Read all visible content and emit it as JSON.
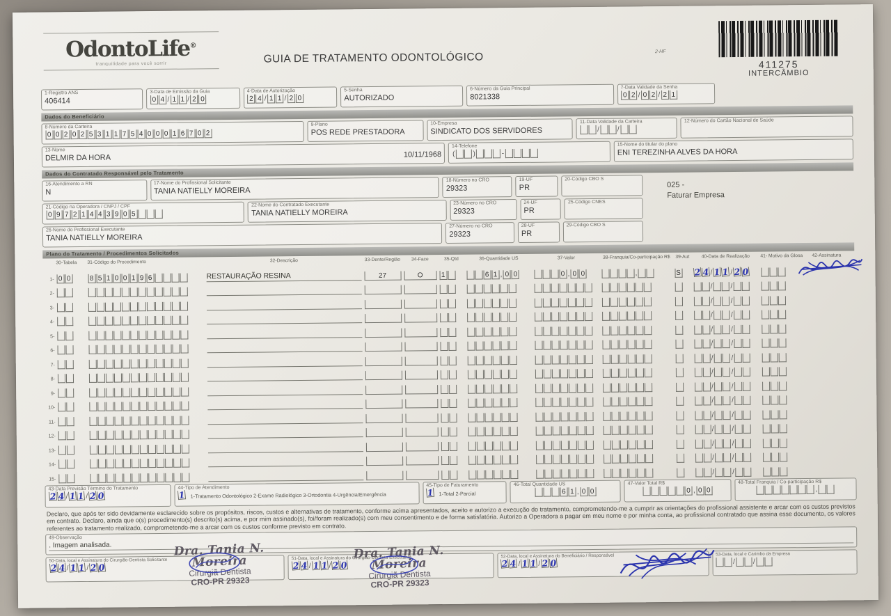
{
  "header": {
    "logo": "OdontoLife",
    "logo_mark": "®",
    "tagline": "tranquilidade para você sorrir",
    "title": "GUIA DE TRATAMENTO ODONTOLÓGICO",
    "code": "2-HF",
    "barcode": {
      "number": "411275",
      "label": "INTERCÂMBIO"
    }
  },
  "sections": {
    "beneficiary": "Dados do Beneficiário",
    "contractor": "Dados do Contratado Responsável pelo Tratamento",
    "plan": "Plano do Tratamento / Procedimentos Solicitados"
  },
  "note": {
    "line1": "025 -",
    "line2": "Faturar Empresa"
  },
  "fields": {
    "f1": {
      "label": "1-Registro ANS",
      "value": "406414"
    },
    "f3": {
      "label": "3-Data de Emissão da Guia",
      "comb": [
        "0",
        "4",
        "/",
        "1",
        "1",
        "/",
        "2",
        "0"
      ]
    },
    "f4": {
      "label": "4-Data de Autorização",
      "comb": [
        "2",
        "4",
        "/",
        "1",
        "1",
        "/",
        "2",
        "0"
      ]
    },
    "f5": {
      "label": "5-Senha",
      "value": "AUTORIZADO"
    },
    "f6": {
      "label": "6-Número da Guia Principal",
      "value": "8021338"
    },
    "f7": {
      "label": "7-Data Validade da Senha",
      "comb": [
        "0",
        "2",
        "/",
        "0",
        "2",
        "/",
        "2",
        "1"
      ]
    },
    "f8": {
      "label": "8-Número da Carteira",
      "comb": [
        "0",
        "0",
        "2",
        "0",
        "2",
        "5",
        "3",
        "1",
        "1",
        "7",
        "5",
        "4",
        "0",
        "0",
        "0",
        "1",
        "6",
        "7",
        "0",
        "2"
      ]
    },
    "f9": {
      "label": "9-Plano",
      "value": "POS REDE PRESTADORA"
    },
    "f10": {
      "label": "10-Empresa",
      "value": "SINDICATO DOS SERVIDORES"
    },
    "f11": {
      "label": "11-Data Validade da Carteira",
      "comb": [
        "",
        "",
        "/",
        "",
        "",
        "/",
        "",
        ""
      ]
    },
    "f12": {
      "label": "12-Número do Cartão Nacional de Saúde",
      "value": ""
    },
    "f13": {
      "label": "13-Nome",
      "value": "DELMIR DA HORA",
      "birthdate": "10/11/1968"
    },
    "f14": {
      "label": "14-Telefone",
      "comb": [
        "(",
        "",
        "",
        ")",
        "",
        "",
        "",
        "-",
        "",
        "",
        "",
        ""
      ]
    },
    "f15": {
      "label": "15-Nome do titular do plano",
      "value": "ENI TEREZINHA ALVES DA HORA"
    },
    "f16": {
      "label": "16-Atendimento a RN",
      "value": "N"
    },
    "f17": {
      "label": "17-Nome do Profissional Solicitante",
      "value": "TANIA NATIELLY MOREIRA"
    },
    "f18": {
      "label": "18-Número no CRO",
      "value": "29323"
    },
    "f19": {
      "label": "19-UF",
      "value": "PR"
    },
    "f20": {
      "label": "20-Código CBO S",
      "value": ""
    },
    "f21": {
      "label": "21-Código na Operadora / CNPJ / CPF",
      "comb": [
        "0",
        "9",
        "7",
        "2",
        "1",
        "4",
        "4",
        "3",
        "9",
        "0",
        "5",
        "",
        "",
        ""
      ]
    },
    "f22": {
      "label": "22-Nome do Contratado Executante",
      "value": "TANIA NATIELLY MOREIRA"
    },
    "f23": {
      "label": "23-Número no CRO",
      "value": "29323"
    },
    "f24": {
      "label": "24-UF",
      "value": "PR"
    },
    "f25": {
      "label": "25-Código CNES",
      "value": ""
    },
    "f26": {
      "label": "26-Nome do Profissional Executante",
      "value": "TANIA NATIELLY MOREIRA"
    },
    "f27": {
      "label": "27-Número no CRO",
      "value": "29323"
    },
    "f28": {
      "label": "28-UF",
      "value": "PR"
    },
    "f29": {
      "label": "29-Código CBO S",
      "value": ""
    },
    "f43": {
      "label": "43-Data Previsão Término do Tratamento",
      "comb": [
        "2",
        "4",
        "/",
        "1",
        "1",
        "/",
        "2",
        "0"
      ]
    },
    "f44": {
      "label": "44-Tipo de Atendimento",
      "comb": [
        "1"
      ],
      "options": "1-Tratamento Odontológico  2-Exame Radiológico  3-Ortodontia  4-Urgência/Emergência"
    },
    "f45": {
      "label": "45-Tipo de Faturamento",
      "comb": [
        "1"
      ],
      "options": "1-Total  2-Parcial"
    },
    "f46": {
      "label": "46-Total Quantidade US",
      "comb": [
        "",
        "",
        "",
        "6",
        "1",
        ",",
        "0",
        "0"
      ]
    },
    "f47": {
      "label": "47-Valor Total R$",
      "comb": [
        "",
        "",
        "",
        "",
        "",
        "0",
        ",",
        "0",
        "0"
      ]
    },
    "f48": {
      "label": "48-Total Franquia / Co-participação R$",
      "comb": [
        "",
        "",
        "",
        "",
        "",
        "",
        "",
        ",",
        "",
        ""
      ]
    },
    "f49": {
      "label": "49-Observação",
      "value": ". Imagem analisada."
    },
    "f50": {
      "label": "50-Data, local e Assinatura do Cirurgião-Dentista Solicitante",
      "comb": [
        "2",
        "4",
        "/",
        "1",
        "1",
        "/",
        "2",
        "0"
      ]
    },
    "f51": {
      "label": "51-Data, local e Assinatura do Cirurgião-Dentista Executante",
      "comb": [
        "2",
        "4",
        "/",
        "1",
        "1",
        "/",
        "2",
        "0"
      ]
    },
    "f52": {
      "label": "52-Data, local e Assinatura do Beneficiário / Responsável",
      "comb": [
        "2",
        "4",
        "/",
        "1",
        "1",
        "/",
        "2",
        "0"
      ]
    },
    "f53": {
      "label": "53-Data, local e Carimbo da Empresa",
      "comb": [
        "",
        "",
        "/",
        "",
        "",
        "/",
        "",
        ""
      ]
    }
  },
  "table": {
    "headers": [
      "30-Tabela",
      "31-Código do Procedimento",
      "32-Descrição",
      "33-Dente/Região",
      "34-Face",
      "35-Qtd",
      "36-Quantidade US",
      "37-Valor",
      "38-Franquia/Co-participação R$",
      "39-Aut",
      "40-Data de Realização",
      "41- Motivo da Glosa",
      "42-Assinatura"
    ],
    "row1": {
      "num": "1-",
      "tabela": [
        "0",
        "0"
      ],
      "codigo": [
        "8",
        "5",
        "1",
        "0",
        "0",
        "1",
        "9",
        "6",
        "",
        "",
        "",
        ""
      ],
      "descricao": "RESTAURAÇÃO RESINA",
      "dente": "27",
      "face": "O",
      "qtd": [
        "1",
        ""
      ],
      "us": [
        "",
        "",
        "6",
        "1",
        ",",
        "0",
        "0"
      ],
      "valor": [
        "",
        "",
        "",
        "0",
        ",",
        "0",
        "0"
      ],
      "franquia": [
        "",
        "",
        "",
        "",
        ",",
        "",
        ""
      ],
      "aut": [
        "S"
      ],
      "data": [
        "2",
        "4",
        "/",
        "1",
        "1",
        "/",
        "2",
        "0"
      ],
      "motivo": [
        "",
        "",
        ""
      ]
    },
    "empty_row_count": 14,
    "first_empty_row_number": 2
  },
  "declaration": "Declaro, que após ter sido devidamente esclarecido sobre os propósitos, riscos, custos e alternativas de tratamento, conforme acima apresentados, aceito e autorizo a execução do tratamento, comprometendo-me a cumprir as orientações do profissional assistente e arcar com os custos previstos em contrato. Declaro, ainda que o(s) procedimento(s) descrito(s) acima, e por mim assinado(s), foi/foram realizado(s) com meu consentimento e de forma satisfatória. Autorizo a Operadora a pagar em meu nome e por minha conta, ao profissional contratado que assina esse documento, os valores referentes ao tratamento realizado, comprometendo-me a arcar com os custos conforme previsto em contrato.",
  "stamp": {
    "line1": "Dra. Tania N. Moreira",
    "line2": "Cirurgiã Dentista",
    "line3": "CRO-PR 29323"
  },
  "colors": {
    "ink_blue": "#2b34ad",
    "stamp_ink": "#4d4752",
    "paper": "#eae8e2"
  }
}
